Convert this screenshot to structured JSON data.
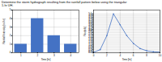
{
  "title": "Determine the storm hydrograph resulting from the rainfall pattern below using the triangular\n1-hr UH.",
  "chart_data": [
    {
      "type": "bar",
      "x": [
        1,
        2,
        3,
        4
      ],
      "values": [
        1.0,
        4.0,
        2.0,
        1.0
      ],
      "color": "#4472c4",
      "xlabel": "Time [hr]",
      "ylabel": "Rainfall Intensity [in./hr]",
      "xlim": [
        0.5,
        4.5
      ],
      "xticks": [
        1,
        2,
        3,
        4
      ],
      "ylim": [
        0,
        5.0
      ],
      "yticks": [
        0,
        1,
        2,
        3,
        4,
        5
      ],
      "grid": true
    },
    {
      "type": "line",
      "x": [
        0,
        1,
        2,
        3,
        4,
        5,
        6,
        7,
        8,
        9,
        10
      ],
      "values": [
        0.05,
        0.4,
        2.2,
        5.0,
        3.6,
        2.2,
        1.2,
        0.55,
        0.25,
        0.12,
        0.08
      ],
      "color": "#4472c4",
      "marker": "o",
      "xlabel": "Time [hr]",
      "ylabel": "Flow[cfs]",
      "xlim": [
        0,
        10
      ],
      "xticks": [
        0,
        2,
        4,
        6,
        8,
        10
      ],
      "ylim": [
        0,
        5.5
      ],
      "yticks": [
        {
          "value": 0.0,
          "label": "0.0"
        },
        0.2,
        0.4,
        0.6,
        0.8,
        {
          "value": 1.0,
          "label": "1.0"
        },
        1.2,
        1.4,
        1.6,
        1.8,
        {
          "value": 2.0,
          "label": "2.0"
        },
        2.2,
        2.4,
        2.6,
        2.8,
        {
          "value": 3.0,
          "label": "3.0"
        },
        3.2,
        3.4,
        3.6,
        3.8,
        {
          "value": 4.0,
          "label": "4.0"
        },
        4.2,
        4.4,
        4.6,
        4.8,
        {
          "value": 5.0,
          "label": "5.0"
        }
      ],
      "grid": true
    }
  ]
}
